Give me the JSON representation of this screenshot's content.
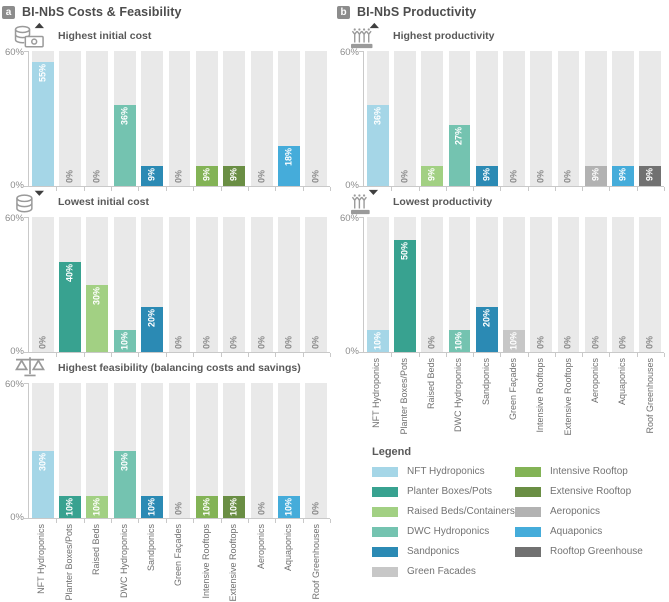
{
  "figure": {
    "panels": [
      {
        "badge": "a",
        "title": "BI-NbS Costs & Feasibility"
      },
      {
        "badge": "b",
        "title": "BI-NbS Productivity"
      }
    ]
  },
  "axis": {
    "y_top": "60%",
    "y_bottom": "0%"
  },
  "categories": [
    "NFT Hydroponics",
    "Planter Boxes/Pots",
    "Raised Beds",
    "DWC Hydroponics",
    "Sandponics",
    "Green Façades",
    "Intensive Rooftops",
    "Extensive Rooftops",
    "Aeroponics",
    "Aquaponics",
    "Roof Greenhouses"
  ],
  "category_colors": [
    "#a5d6e7",
    "#38a290",
    "#a2d083",
    "#74c3b0",
    "#2b8ab4",
    "#c7c7c7",
    "#83b356",
    "#6a8e44",
    "#b2b2b2",
    "#45acda",
    "#717171"
  ],
  "chart_data": [
    {
      "type": "bar",
      "panel": "a",
      "icon": "coins-up-icon",
      "title": "Highest initial cost",
      "unit": "%",
      "ylim": [
        0,
        60
      ],
      "yticks": [
        "0%",
        "60%"
      ],
      "categories": [
        "NFT Hydroponics",
        "Planter Boxes/Pots",
        "Raised Beds",
        "DWC Hydroponics",
        "Sandponics",
        "Green Façades",
        "Intensive Rooftops",
        "Extensive Rooftops",
        "Aeroponics",
        "Aquaponics",
        "Roof Greenhouses"
      ],
      "values": [
        55,
        0,
        0,
        36,
        9,
        0,
        9,
        9,
        0,
        18,
        0
      ]
    },
    {
      "type": "bar",
      "panel": "a",
      "icon": "coins-down-icon",
      "title": "Lowest initial cost",
      "unit": "%",
      "ylim": [
        0,
        60
      ],
      "yticks": [
        "0%",
        "60%"
      ],
      "categories": [
        "NFT Hydroponics",
        "Planter Boxes/Pots",
        "Raised Beds",
        "DWC Hydroponics",
        "Sandponics",
        "Green Façades",
        "Intensive Rooftops",
        "Extensive Rooftops",
        "Aeroponics",
        "Aquaponics",
        "Roof Greenhouses"
      ],
      "values": [
        0,
        40,
        30,
        10,
        20,
        0,
        0,
        0,
        0,
        0,
        0
      ]
    },
    {
      "type": "bar",
      "panel": "a",
      "icon": "balance-scale-icon",
      "title": "Highest feasibility (balancing costs and savings)",
      "unit": "%",
      "ylim": [
        0,
        60
      ],
      "yticks": [
        "0%",
        "60%"
      ],
      "categories": [
        "NFT Hydroponics",
        "Planter Boxes/Pots",
        "Raised Beds",
        "DWC Hydroponics",
        "Sandponics",
        "Green Façades",
        "Intensive Rooftops",
        "Extensive Rooftops",
        "Aeroponics",
        "Aquaponics",
        "Roof Greenhouses"
      ],
      "values": [
        30,
        10,
        10,
        30,
        10,
        0,
        10,
        10,
        0,
        10,
        0
      ]
    },
    {
      "type": "bar",
      "panel": "b",
      "icon": "plants-up-icon",
      "title": "Highest productivity",
      "unit": "%",
      "ylim": [
        0,
        60
      ],
      "yticks": [
        "0%",
        "60%"
      ],
      "categories": [
        "NFT Hydroponics",
        "Planter Boxes/Pots",
        "Raised Beds",
        "DWC Hydroponics",
        "Sandponics",
        "Green Façades",
        "Intensive Rooftops",
        "Extensive Rooftops",
        "Aeroponics",
        "Aquaponics",
        "Roof Greenhouses"
      ],
      "values": [
        36,
        0,
        9,
        27,
        9,
        0,
        0,
        0,
        9,
        9,
        9
      ]
    },
    {
      "type": "bar",
      "panel": "b",
      "icon": "plants-down-icon",
      "title": "Lowest productivity",
      "unit": "%",
      "ylim": [
        0,
        60
      ],
      "yticks": [
        "0%",
        "60%"
      ],
      "categories": [
        "NFT Hydroponics",
        "Planter Boxes/Pots",
        "Raised Beds",
        "DWC Hydroponics",
        "Sandponics",
        "Green Façades",
        "Intensive Rooftops",
        "Extensive Rooftops",
        "Aeroponics",
        "Aquaponics",
        "Roof Greenhouses"
      ],
      "values": [
        10,
        50,
        0,
        10,
        20,
        10,
        0,
        0,
        0,
        0,
        0
      ]
    }
  ],
  "legend": {
    "title": "Legend",
    "columns": [
      [
        {
          "label": "NFT Hydroponics",
          "color": "#a5d6e7"
        },
        {
          "label": "Planter Boxes/Pots",
          "color": "#38a290"
        },
        {
          "label": "Raised Beds/Containers",
          "color": "#a2d083"
        },
        {
          "label": "DWC Hydroponics",
          "color": "#74c3b0"
        },
        {
          "label": "Sandponics",
          "color": "#2b8ab4"
        },
        {
          "label": "Green Facades",
          "color": "#c7c7c7"
        }
      ],
      [
        {
          "label": "Intensive Rooftop",
          "color": "#83b356"
        },
        {
          "label": "Extensive Rooftop",
          "color": "#6a8e44"
        },
        {
          "label": "Aeroponics",
          "color": "#b2b2b2"
        },
        {
          "label": "Aquaponics",
          "color": "#45acda"
        },
        {
          "label": "Rooftop Greenhouse",
          "color": "#717171"
        }
      ]
    ]
  }
}
